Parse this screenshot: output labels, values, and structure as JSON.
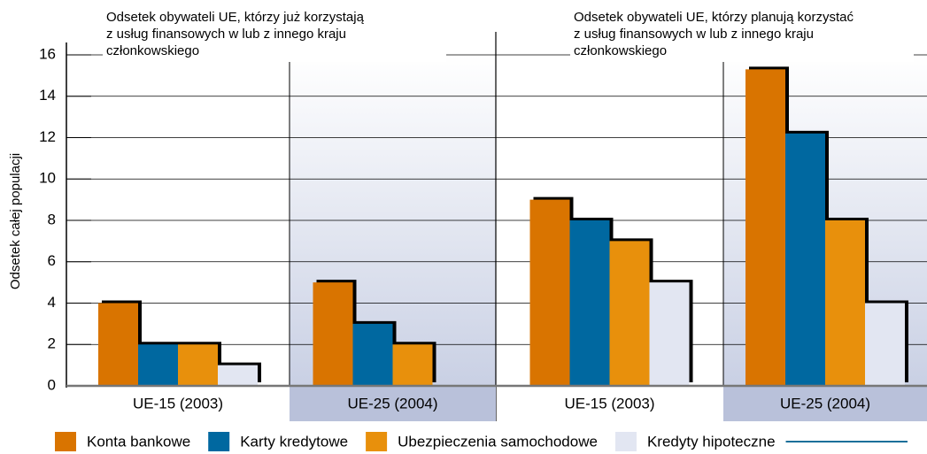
{
  "chart_data": {
    "type": "bar",
    "panel_titles": [
      [
        "Odsetek obywateli UE, którzy już korzystają",
        "z usług finansowych w lub z innego kraju",
        "członkowskiego"
      ],
      [
        "Odsetek obywateli UE, którzy planują korzystać",
        "z usług finansowych w lub z innego kraju",
        "członkowskiego"
      ]
    ],
    "y_label": "Odsetek całej populacji",
    "categories": [
      "UE-15 (2003)",
      "UE-25 (2004)",
      "UE-15 (2003)",
      "UE-25 (2004)"
    ],
    "series": [
      {
        "name": "Konta bankowe",
        "color": "#d97400",
        "values": [
          4,
          5,
          9,
          15.3
        ]
      },
      {
        "name": "Karty kredytowe",
        "color": "#0068a0",
        "values": [
          2,
          3,
          8,
          12.2
        ]
      },
      {
        "name": "Ubezpieczenia samochodowe",
        "color": "#e8900c",
        "values": [
          2,
          2,
          7,
          8
        ]
      },
      {
        "name": "Kredyty hipoteczne",
        "color": "#e2e6f2",
        "values": [
          1,
          0,
          5,
          4
        ]
      }
    ],
    "ylim": [
      0,
      16
    ],
    "yticks": [
      0,
      2,
      4,
      6,
      8,
      10,
      12,
      14,
      16
    ],
    "grid": true
  }
}
